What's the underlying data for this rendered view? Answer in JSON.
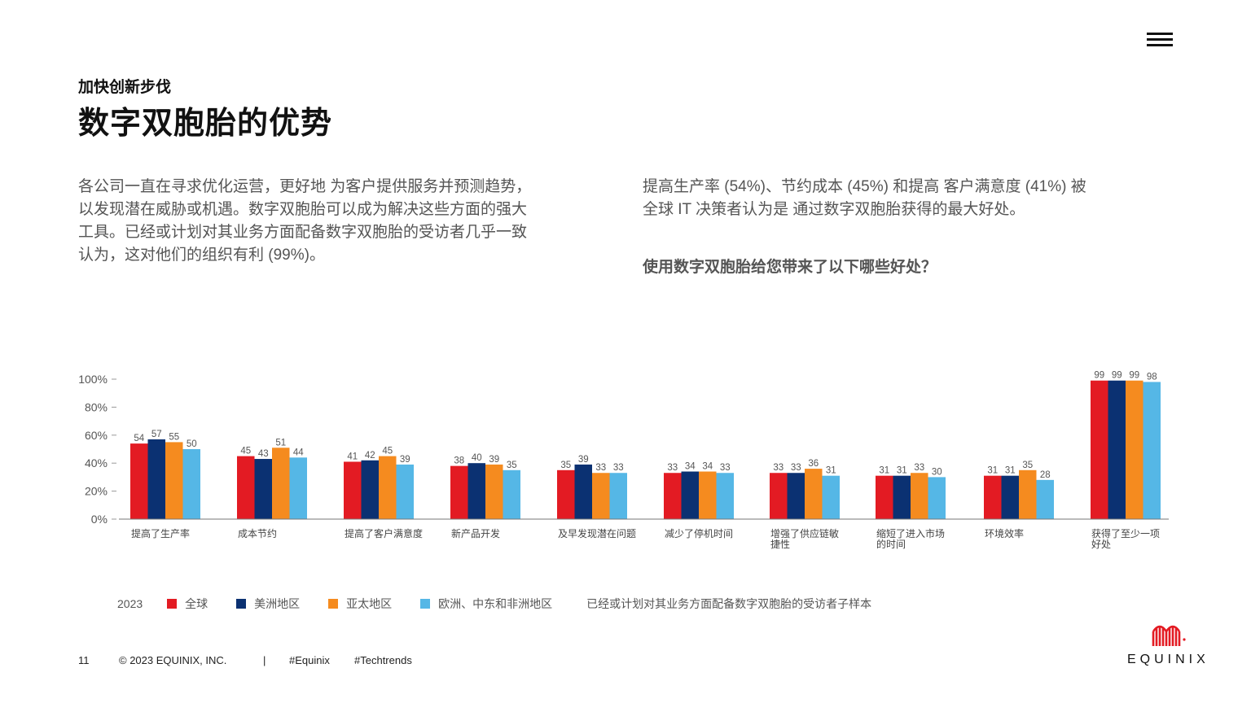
{
  "header": {
    "subtitle": "加快创新步伐",
    "title": "数字双胞胎的优势",
    "menu_icon": "hamburger-menu-icon"
  },
  "intro": {
    "left_paragraph": "各公司一直在寻求优化运营，更好地 为客户提供服务并预测趋势，以发现潜在威胁或机遇。数字双胞胎可以成为解决这些方面的强大工具。已经或计划对其业务方面配备数字双胞胎的受访者几乎一致认为，这对他们的组织有利 (99%)。",
    "right_paragraph": "提高生产率 (54%)、节约成本 (45%) 和提高 客户满意度 (41%) 被全球 IT 决策者认为是 通过数字双胞胎获得的最大好处。",
    "question": "使用数字双胞胎给您带来了以下哪些好处？"
  },
  "chart_data": {
    "type": "bar",
    "categories": [
      [
        "提高了生产率"
      ],
      [
        "成本节约"
      ],
      [
        "提高了客户满意度"
      ],
      [
        "新产品开发"
      ],
      [
        "及早发现潜在问题"
      ],
      [
        "减少了停机时间"
      ],
      [
        "增强了供应链敏",
        "捷性"
      ],
      [
        "缩短了进入市场",
        "的时间"
      ],
      [
        "环境效率"
      ],
      [
        "获得了至少一项",
        "好处"
      ]
    ],
    "series": [
      {
        "name": "全球",
        "color": "#e31b23",
        "values": [
          54,
          45,
          41,
          38,
          35,
          33,
          33,
          31,
          31,
          99
        ]
      },
      {
        "name": "美洲地区",
        "color": "#0b3172",
        "values": [
          57,
          43,
          42,
          40,
          39,
          34,
          33,
          31,
          31,
          99
        ]
      },
      {
        "name": "亚太地区",
        "color": "#f58b1f",
        "values": [
          55,
          51,
          45,
          39,
          33,
          34,
          36,
          33,
          35,
          99
        ]
      },
      {
        "name": "欧洲、中东和非洲地区",
        "color": "#55b7e6",
        "values": [
          50,
          44,
          39,
          35,
          33,
          33,
          31,
          30,
          28,
          98
        ]
      }
    ],
    "y_ticks": [
      "0%",
      "20%",
      "40%",
      "60%",
      "80%",
      "100%"
    ],
    "ylim": [
      0,
      100
    ],
    "show_data_labels": true
  },
  "legend": {
    "year": "2023",
    "note": "已经或计划对其业务方面配备数字双胞胎的受访者子样本"
  },
  "footer": {
    "page_number": "11",
    "copyright": "© 2023 EQUINIX, INC.",
    "separator": "|",
    "hashtag1": "#Equinix",
    "hashtag2": "#Techtrends"
  },
  "brand": {
    "logo_text": "EQUINIX",
    "logo_color": "#e31b23",
    "logo_icon": "equinix-logo-icon"
  }
}
